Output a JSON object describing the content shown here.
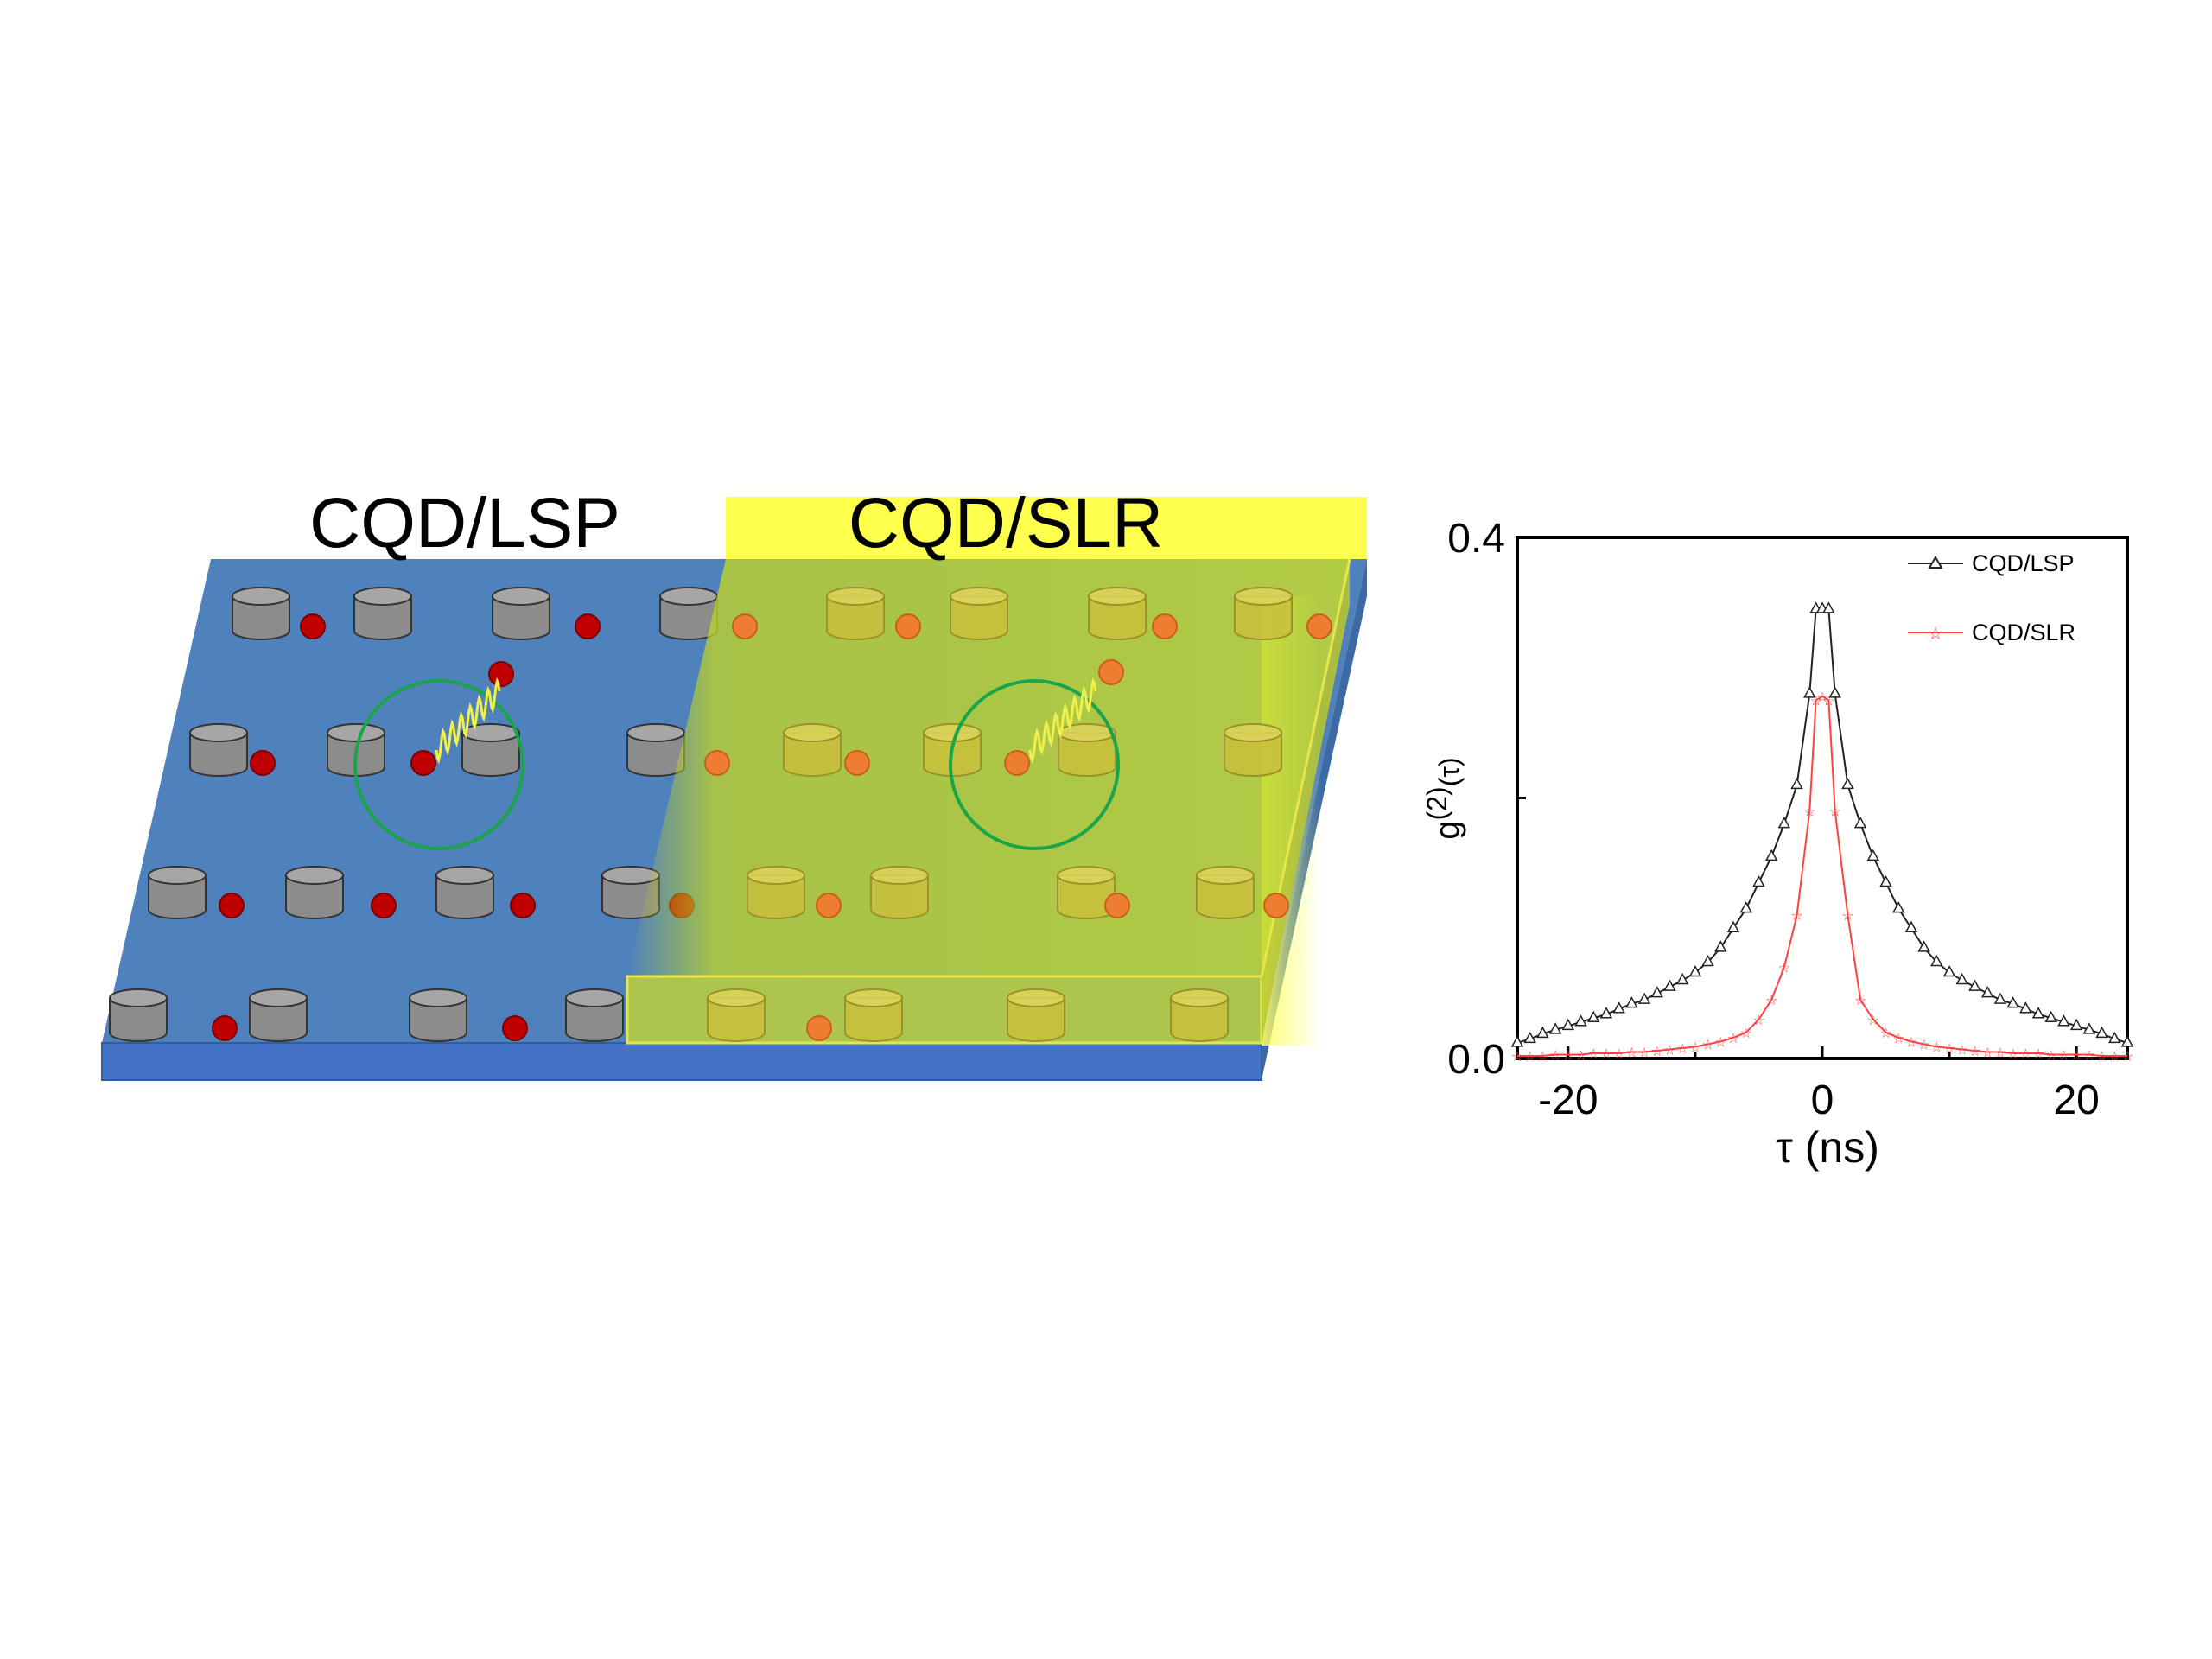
{
  "diagram": {
    "label_left": "CQD/LSP",
    "label_right": "CQD/SLR",
    "colors": {
      "substrate": "#4f81bd",
      "substrate_edge": "#2f5f99",
      "film": "#c8d92e",
      "banner": "#ffff4d",
      "pillar_gray": "#8c8c8c",
      "pillar_gold": "#c9bf3c",
      "dot_red": "#c00000",
      "dot_orange": "#ed7d31",
      "circle": "#1aa54a",
      "wave": "#f0f04a"
    }
  },
  "chart_data": {
    "type": "line",
    "title": "",
    "xlabel": "τ (ns)",
    "ylabel_main": "g",
    "ylabel_sup": "(2)",
    "ylabel_arg": "(τ)",
    "xlim": [
      -24,
      24
    ],
    "ylim": [
      0,
      0.4
    ],
    "xticks": [
      -20,
      0,
      20
    ],
    "xtick_labels": [
      "-20",
      "0",
      "20"
    ],
    "yticks": [
      0,
      0.4
    ],
    "ytick_labels": [
      "0.0",
      "0.4"
    ],
    "legend_position": "top-right",
    "series": [
      {
        "name": "CQD/LSP",
        "color": "#222222",
        "marker": "triangle",
        "x": [
          -24,
          -23,
          -22,
          -21,
          -20,
          -19,
          -18,
          -17,
          -16,
          -15,
          -14,
          -13,
          -12,
          -11,
          -10,
          -9,
          -8,
          -7,
          -6,
          -5,
          -4,
          -3,
          -2,
          -1,
          -0.5,
          0,
          0.5,
          1,
          2,
          3,
          4,
          5,
          6,
          7,
          8,
          9,
          10,
          11,
          12,
          13,
          14,
          15,
          16,
          17,
          18,
          19,
          20,
          21,
          22,
          23,
          24
        ],
        "values": [
          0.012,
          0.015,
          0.019,
          0.022,
          0.025,
          0.028,
          0.031,
          0.034,
          0.038,
          0.042,
          0.045,
          0.05,
          0.055,
          0.06,
          0.066,
          0.074,
          0.085,
          0.1,
          0.115,
          0.135,
          0.155,
          0.18,
          0.21,
          0.28,
          0.345,
          0.345,
          0.345,
          0.28,
          0.21,
          0.18,
          0.155,
          0.135,
          0.115,
          0.1,
          0.085,
          0.074,
          0.066,
          0.06,
          0.055,
          0.05,
          0.045,
          0.042,
          0.038,
          0.034,
          0.031,
          0.028,
          0.025,
          0.022,
          0.019,
          0.015,
          0.012
        ]
      },
      {
        "name": "CQD/SLR",
        "color": "#ff4040",
        "marker": "star",
        "x": [
          -24,
          -23,
          -22,
          -21,
          -20,
          -19,
          -18,
          -17,
          -16,
          -15,
          -14,
          -13,
          -12,
          -11,
          -10,
          -9,
          -8,
          -7,
          -6,
          -5,
          -4,
          -3,
          -2,
          -1,
          -0.5,
          0,
          0.5,
          1,
          2,
          3,
          4,
          5,
          6,
          7,
          8,
          9,
          10,
          11,
          12,
          13,
          14,
          15,
          16,
          17,
          18,
          19,
          20,
          21,
          22,
          23,
          24
        ],
        "values": [
          0.002,
          0.002,
          0.002,
          0.003,
          0.003,
          0.003,
          0.004,
          0.004,
          0.004,
          0.005,
          0.005,
          0.006,
          0.007,
          0.008,
          0.009,
          0.011,
          0.013,
          0.016,
          0.02,
          0.03,
          0.045,
          0.07,
          0.11,
          0.19,
          0.275,
          0.278,
          0.275,
          0.19,
          0.11,
          0.045,
          0.03,
          0.02,
          0.016,
          0.013,
          0.011,
          0.009,
          0.008,
          0.007,
          0.006,
          0.005,
          0.005,
          0.004,
          0.004,
          0.004,
          0.003,
          0.003,
          0.003,
          0.003,
          0.002,
          0.002,
          0.002
        ]
      }
    ]
  }
}
